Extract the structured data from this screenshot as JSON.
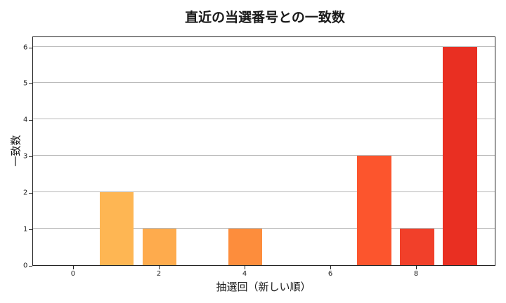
{
  "chart_data": {
    "type": "bar",
    "title": "直近の当選番号との一致数",
    "xlabel": "抽選回（新しい順）",
    "ylabel": "一致数",
    "categories": [
      0,
      1,
      2,
      3,
      4,
      5,
      6,
      7,
      8,
      9
    ],
    "values": [
      0,
      2,
      1,
      0,
      1,
      0,
      0,
      3,
      1,
      6
    ],
    "colors": [
      "#ffc860",
      "#feb653",
      "#feab4d",
      "#fd9a43",
      "#fd8d3c",
      "#fc6f33",
      "#fc5d2e",
      "#fc552d",
      "#f1402a",
      "#e92f22"
    ],
    "xticks": [
      "0",
      "2",
      "4",
      "6",
      "8"
    ],
    "yticks": [
      "0",
      "1",
      "2",
      "3",
      "4",
      "5",
      "6"
    ],
    "xlim": [
      -0.95,
      9.85
    ],
    "ylim": [
      0,
      6.3
    ],
    "grid": "y",
    "legend": null
  }
}
